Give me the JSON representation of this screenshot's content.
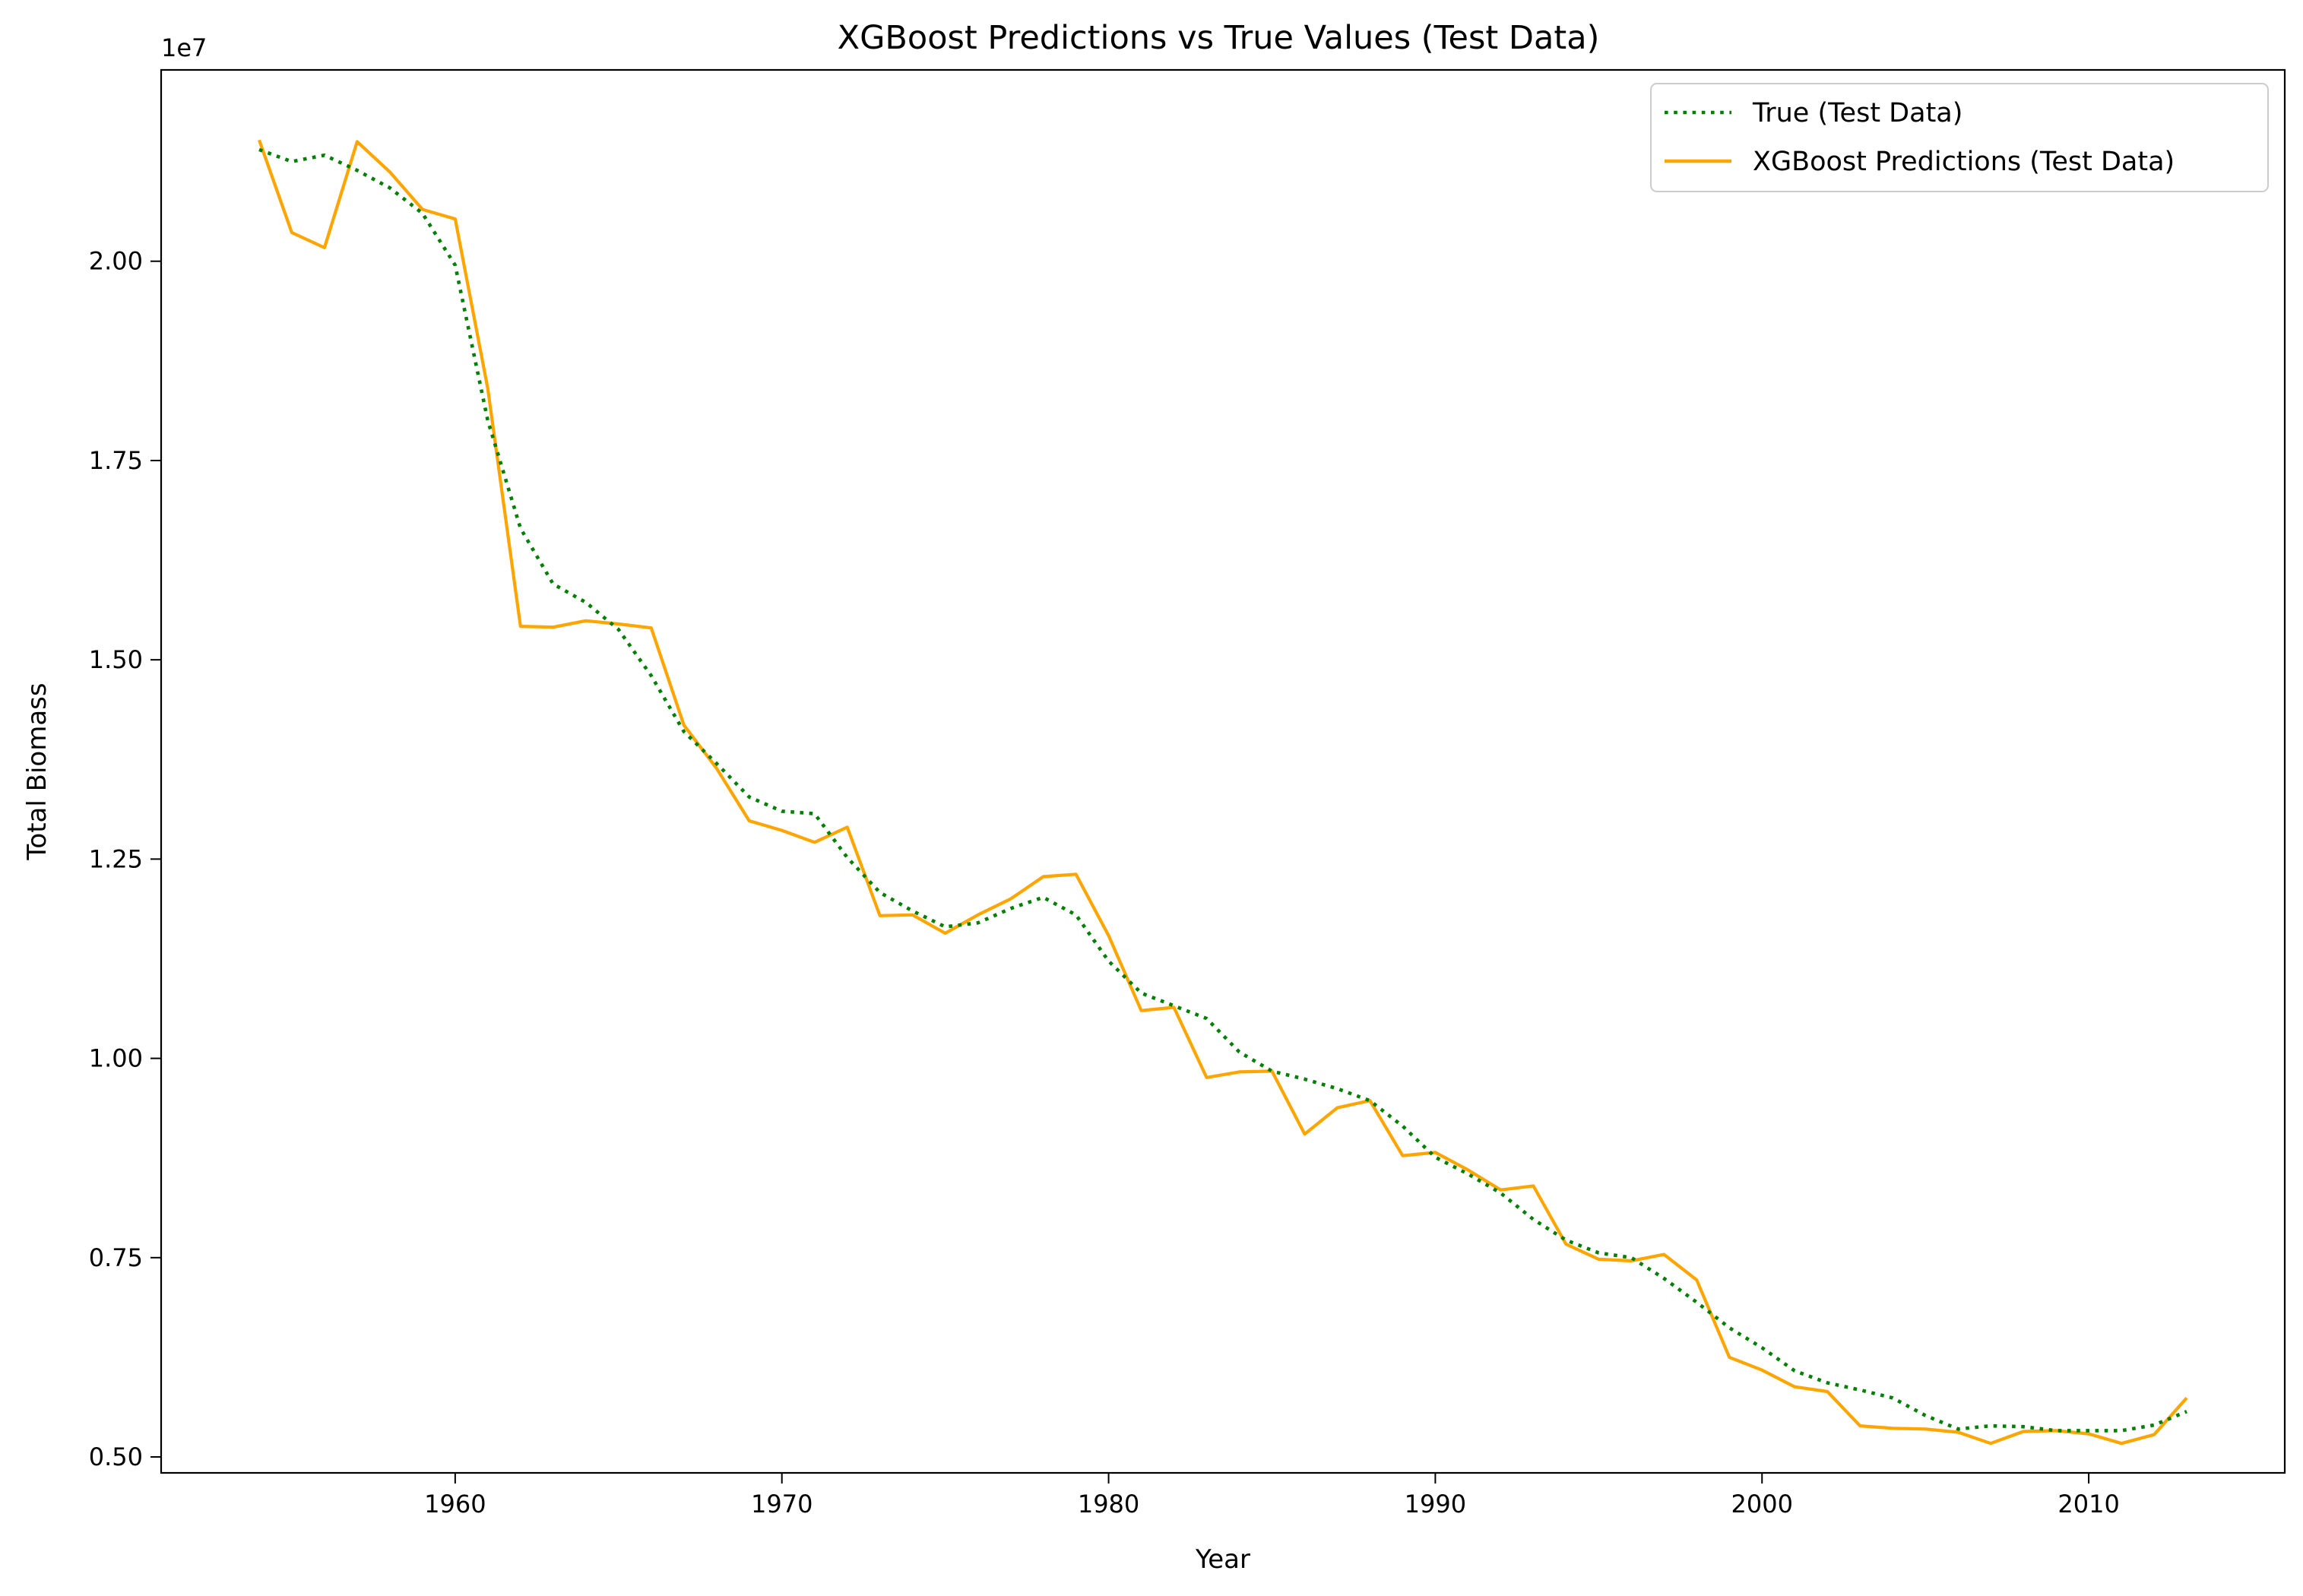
{
  "chart_data": {
    "type": "line",
    "title": "XGBoost Predictions vs True Values (Test Data)",
    "xlabel": "Year",
    "ylabel": "Total Biomass",
    "y_offset_label": "1e7",
    "xlim": [
      1951,
      2016
    ],
    "ylim": [
      4800000,
      22400000
    ],
    "x_ticks": [
      1960,
      1970,
      1980,
      1990,
      2000,
      2010
    ],
    "x_tick_labels": [
      "1960",
      "1970",
      "1980",
      "1990",
      "2000",
      "2010"
    ],
    "y_ticks": [
      5000000,
      7500000,
      10000000,
      12500000,
      15000000,
      17500000,
      20000000
    ],
    "y_tick_labels": [
      "0.50",
      "0.75",
      "1.00",
      "1.25",
      "1.50",
      "1.75",
      "2.00"
    ],
    "grid": false,
    "legend_position": "top-right",
    "x": [
      1954,
      1955,
      1956,
      1957,
      1958,
      1959,
      1960,
      1961,
      1962,
      1963,
      1964,
      1965,
      1966,
      1967,
      1968,
      1969,
      1970,
      1971,
      1972,
      1973,
      1974,
      1975,
      1976,
      1977,
      1978,
      1979,
      1980,
      1981,
      1982,
      1983,
      1984,
      1985,
      1986,
      1987,
      1988,
      1989,
      1990,
      1991,
      1992,
      1993,
      1994,
      1995,
      1996,
      1997,
      1998,
      1999,
      2000,
      2001,
      2002,
      2003,
      2004,
      2005,
      2006,
      2007,
      2008,
      2009,
      2010,
      2011,
      2012,
      2013
    ],
    "series": [
      {
        "name": "True (Test Data)",
        "color": "#008000",
        "style": "dotted",
        "values": [
          21400000,
          21250000,
          21330000,
          21140000,
          20920000,
          20600000,
          19950000,
          18000000,
          16650000,
          15950000,
          15720000,
          15380000,
          14800000,
          14100000,
          13700000,
          13280000,
          13100000,
          13070000,
          12520000,
          12080000,
          11850000,
          11650000,
          11700000,
          11880000,
          12020000,
          11800000,
          11220000,
          10820000,
          10660000,
          10500000,
          10080000,
          9840000,
          9740000,
          9620000,
          9470000,
          9150000,
          8760000,
          8550000,
          8310000,
          7980000,
          7720000,
          7560000,
          7500000,
          7240000,
          6940000,
          6620000,
          6370000,
          6080000,
          5930000,
          5840000,
          5740000,
          5520000,
          5350000,
          5390000,
          5380000,
          5330000,
          5330000,
          5330000,
          5400000,
          5570000
        ]
      },
      {
        "name": "XGBoost Predictions (Test Data)",
        "color": "#ffa500",
        "style": "solid",
        "values": [
          21520000,
          20360000,
          20170000,
          21500000,
          21120000,
          20650000,
          20530000,
          18400000,
          15420000,
          15410000,
          15490000,
          15450000,
          15400000,
          14180000,
          13640000,
          12980000,
          12860000,
          12710000,
          12900000,
          11790000,
          11800000,
          11570000,
          11800000,
          12000000,
          12280000,
          12310000,
          11540000,
          10600000,
          10640000,
          9760000,
          9830000,
          9840000,
          9050000,
          9380000,
          9470000,
          8780000,
          8820000,
          8600000,
          8350000,
          8400000,
          7670000,
          7480000,
          7460000,
          7540000,
          7220000,
          6250000,
          6090000,
          5880000,
          5820000,
          5390000,
          5360000,
          5350000,
          5310000,
          5170000,
          5320000,
          5330000,
          5290000,
          5170000,
          5280000,
          5740000
        ]
      }
    ]
  }
}
